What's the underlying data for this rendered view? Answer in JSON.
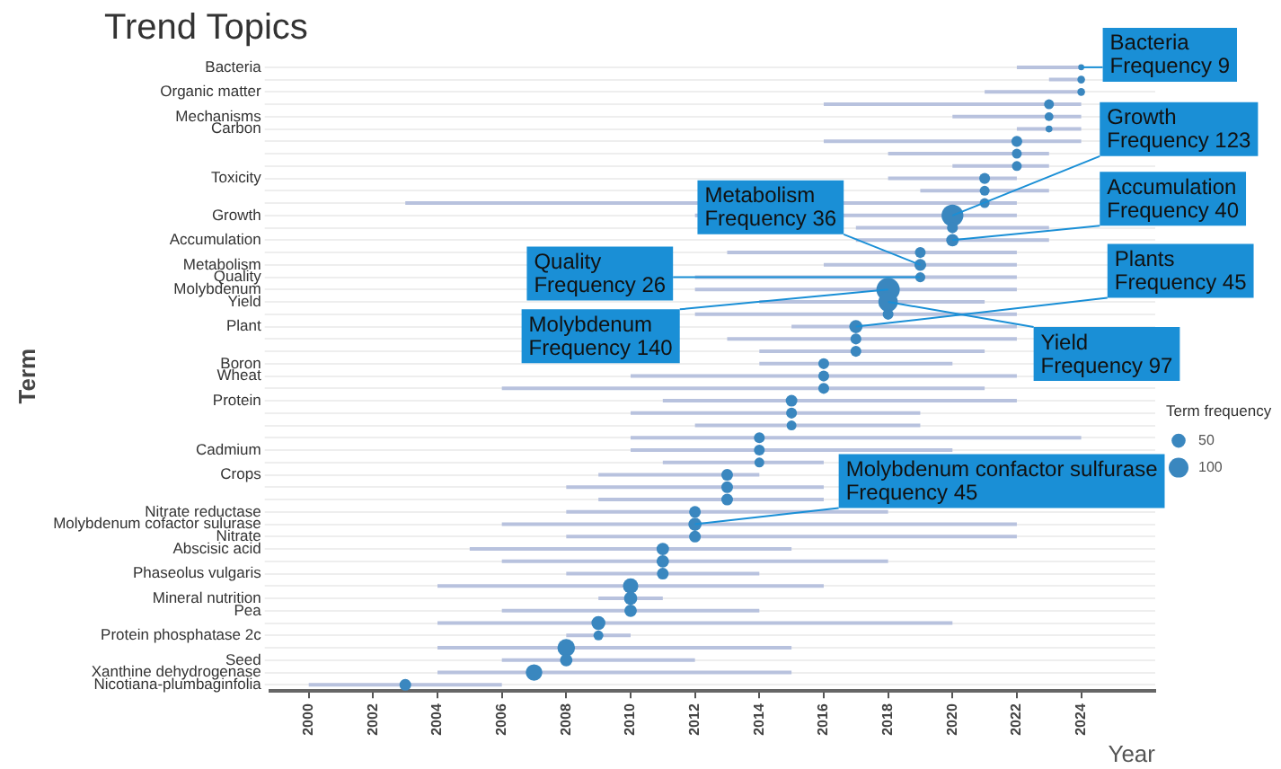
{
  "chart_data": {
    "type": "bubble",
    "orientation": "horizontal",
    "title": "Trend Topics",
    "xlabel": "Year",
    "ylabel": "Term",
    "legend_title": "Term frequency",
    "grid": "y",
    "color": "#3a87bf",
    "categories": [
      "Bacteria",
      null,
      "Organic matter",
      null,
      "Mechanisms",
      "Carbon",
      null,
      null,
      null,
      "Toxicity",
      null,
      null,
      "Growth",
      null,
      "Accumulation",
      null,
      "Metabolism",
      "Quality",
      "Molybdenum",
      "Yield",
      null,
      "Plant",
      null,
      null,
      "Boron",
      "Wheat",
      null,
      "Protein",
      null,
      null,
      null,
      "Cadmium",
      null,
      "Crops",
      null,
      null,
      "Nitrate reductase",
      "Molybdenum cofactor sulurase",
      "Nitrate",
      "Abscisic acid",
      null,
      "Phaseolus vulgaris",
      null,
      "Mineral nutrition",
      "Pea",
      null,
      "Protein phosphatase 2c",
      null,
      "Seed",
      "Xanthine dehydrogenase",
      "Nicotiana-plumbaginfolia"
    ],
    "values": [
      2024,
      2024,
      2024,
      2023,
      2023,
      2023,
      2022,
      2022,
      2022,
      2021,
      2021,
      2021,
      2020,
      2020,
      2020,
      2019,
      2019,
      2019,
      2018,
      2018,
      2018,
      2017,
      2017,
      2017,
      2016,
      2016,
      2016,
      2015,
      2015,
      2015,
      2014,
      2014,
      2014,
      2013,
      2013,
      2013,
      2012,
      2012,
      2012,
      2011,
      2011,
      2011,
      2010,
      2010,
      2010,
      2009,
      2009,
      2008,
      2008,
      2007,
      2003
    ],
    "sizes": [
      9,
      15,
      15,
      25,
      20,
      12,
      30,
      25,
      25,
      30,
      25,
      25,
      123,
      30,
      40,
      30,
      36,
      26,
      140,
      97,
      30,
      45,
      30,
      30,
      30,
      30,
      30,
      35,
      30,
      25,
      30,
      30,
      25,
      35,
      35,
      35,
      35,
      45,
      35,
      40,
      40,
      35,
      60,
      45,
      40,
      50,
      25,
      80,
      40,
      70,
      35
    ],
    "size_legend": [
      50,
      100
    ],
    "errors": [
      [
        2022,
        2024
      ],
      [
        2023,
        2024
      ],
      [
        2021,
        2024
      ],
      [
        2016,
        2024
      ],
      [
        2020,
        2024
      ],
      [
        2022,
        2024
      ],
      [
        2016,
        2024
      ],
      [
        2018,
        2023
      ],
      [
        2020,
        2023
      ],
      [
        2018,
        2022
      ],
      [
        2019,
        2023
      ],
      [
        2003,
        2022
      ],
      [
        2012,
        2022
      ],
      [
        2017,
        2023
      ],
      [
        2017,
        2023
      ],
      [
        2013,
        2022
      ],
      [
        2016,
        2022
      ],
      [
        2012,
        2022
      ],
      [
        2012,
        2022
      ],
      [
        2014,
        2021
      ],
      [
        2012,
        2022
      ],
      [
        2015,
        2022
      ],
      [
        2013,
        2022
      ],
      [
        2014,
        2021
      ],
      [
        2014,
        2020
      ],
      [
        2010,
        2022
      ],
      [
        2006,
        2021
      ],
      [
        2011,
        2022
      ],
      [
        2010,
        2019
      ],
      [
        2012,
        2019
      ],
      [
        2010,
        2024
      ],
      [
        2010,
        2020
      ],
      [
        2011,
        2016
      ],
      [
        2009,
        2014
      ],
      [
        2008,
        2016
      ],
      [
        2009,
        2016
      ],
      [
        2008,
        2018
      ],
      [
        2006,
        2022
      ],
      [
        2008,
        2022
      ],
      [
        2005,
        2015
      ],
      [
        2006,
        2018
      ],
      [
        2008,
        2014
      ],
      [
        2004,
        2016
      ],
      [
        2009,
        2011
      ],
      [
        2006,
        2014
      ],
      [
        2004,
        2020
      ],
      [
        2008,
        2010
      ],
      [
        2004,
        2015
      ],
      [
        2006,
        2012
      ],
      [
        2004,
        2015
      ],
      [
        2000,
        2006
      ]
    ],
    "xlim": [
      1998.8,
      2026.3
    ],
    "xticks": [
      2000,
      2002,
      2004,
      2006,
      2008,
      2010,
      2012,
      2014,
      2016,
      2018,
      2020,
      2022,
      2024
    ],
    "annotations": [
      {
        "text": "Bacteria\nFrequency 9",
        "x": 2024,
        "y": "Bacteria"
      },
      {
        "text": "Growth\nFrequency 123",
        "x": 2020,
        "y": "Growth"
      },
      {
        "text": "Accumulation\nFrequency 40",
        "x": 2020,
        "y": "Accumulation"
      },
      {
        "text": "Metabolism\nFrequency 36",
        "x": 2019,
        "y": "Metabolism"
      },
      {
        "text": "Quality\nFrequency 26",
        "x": 2019,
        "y": "Quality"
      },
      {
        "text": "Molybdenum\nFrequency 140",
        "x": 2018,
        "y": "Molybdenum"
      },
      {
        "text": "Plants\nFrequency 45",
        "x": 2017,
        "y": "Plant"
      },
      {
        "text": "Yield\nFrequency 97",
        "x": 2018,
        "y": "Yield"
      },
      {
        "text": "Molybdenum confactor sulfurase\nFrequency 45",
        "x": 2012,
        "y": "Molybdenum cofactor sulurase"
      }
    ]
  }
}
